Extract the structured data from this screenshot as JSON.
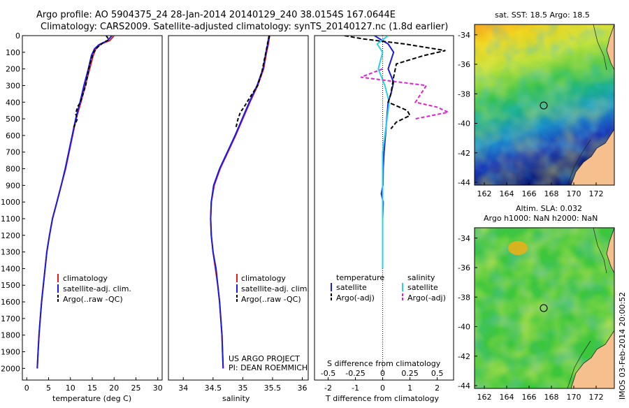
{
  "header": {
    "line1": "Argo profile: AO 5904375_24 28-Jan-2014 20140129_240 38.0154S 167.0644E",
    "line2": "Climatology: CARS2009. Satellite-adjusted climatology: synTS_20140127.nc (1.8d earlier)"
  },
  "colors": {
    "climatology": "#e02020",
    "satellite": "#1a1ae0",
    "argo": "#000000",
    "salinity_satellite": "#28d0e8",
    "salinity_argo": "#e020d0",
    "land": "#f5c08e"
  },
  "chart_data": [
    {
      "type": "line",
      "name": "temperature-profile",
      "xlabel": "temperature (deg C)",
      "xlim": [
        -1,
        31
      ],
      "xticks": [
        0,
        5,
        10,
        15,
        20,
        25,
        30
      ],
      "ylim": [
        0,
        2070
      ],
      "yticks": [
        0,
        100,
        200,
        300,
        400,
        500,
        600,
        700,
        800,
        900,
        1000,
        1100,
        1200,
        1300,
        1400,
        1500,
        1600,
        1700,
        1800,
        1900,
        2000
      ],
      "legend": [
        "climatology",
        "satellite-adj. clim.",
        "Argo(..raw -QC)"
      ],
      "series": [
        {
          "name": "climatology",
          "points": [
            [
              20,
              0
            ],
            [
              19,
              30
            ],
            [
              17,
              50
            ],
            [
              15.8,
              80
            ],
            [
              15.2,
              120
            ],
            [
              14.4,
              200
            ],
            [
              13.4,
              300
            ],
            [
              12.4,
              400
            ],
            [
              11.3,
              500
            ],
            [
              10.5,
              600
            ],
            [
              9.7,
              700
            ],
            [
              8.9,
              800
            ],
            [
              7.9,
              900
            ],
            [
              6.9,
              1000
            ],
            [
              5.9,
              1100
            ],
            [
              5.2,
              1200
            ],
            [
              4.6,
              1300
            ],
            [
              4.2,
              1400
            ],
            [
              3.8,
              1500
            ],
            [
              3.4,
              1600
            ],
            [
              3.1,
              1700
            ],
            [
              2.8,
              1800
            ],
            [
              2.6,
              1900
            ],
            [
              2.4,
              2000
            ]
          ]
        },
        {
          "name": "satellite-adj. clim.",
          "points": [
            [
              19.5,
              0
            ],
            [
              18.5,
              30
            ],
            [
              16.5,
              55
            ],
            [
              15.5,
              80
            ],
            [
              14.8,
              120
            ],
            [
              14.1,
              200
            ],
            [
              13.1,
              300
            ],
            [
              12.2,
              400
            ],
            [
              11.2,
              500
            ],
            [
              10.4,
              600
            ],
            [
              9.6,
              700
            ],
            [
              8.8,
              800
            ],
            [
              7.9,
              900
            ],
            [
              6.9,
              1000
            ],
            [
              5.9,
              1100
            ],
            [
              5.2,
              1200
            ],
            [
              4.6,
              1300
            ],
            [
              4.2,
              1400
            ],
            [
              3.8,
              1500
            ],
            [
              3.4,
              1600
            ],
            [
              3.1,
              1700
            ],
            [
              2.8,
              1800
            ],
            [
              2.6,
              1900
            ],
            [
              2.4,
              2000
            ]
          ]
        },
        {
          "name": "Argo(..raw -QC)",
          "points": [
            [
              18.2,
              0
            ],
            [
              18.8,
              25
            ],
            [
              17.6,
              40
            ],
            [
              16.2,
              70
            ],
            [
              15.3,
              100
            ],
            [
              14.7,
              150
            ],
            [
              14.2,
              200
            ],
            [
              13.5,
              300
            ],
            [
              12.3,
              400
            ],
            [
              11.6,
              430
            ],
            [
              11.2,
              470
            ],
            [
              11.6,
              500
            ],
            [
              10.6,
              560
            ]
          ]
        }
      ]
    },
    {
      "type": "line",
      "name": "salinity-profile",
      "xlabel": "salinity",
      "xlim": [
        33.75,
        36.1
      ],
      "xticks": [
        34,
        34.5,
        35,
        35.5,
        36
      ],
      "ylim": [
        0,
        2070
      ],
      "legend": [
        "climatology",
        "satellite-adj. clim.",
        "Argo(..raw -QC)"
      ],
      "annotation": [
        "US ARGO PROJECT",
        "PI: DEAN ROEMMICH"
      ],
      "series": [
        {
          "name": "climatology",
          "points": [
            [
              35.45,
              0
            ],
            [
              35.43,
              50
            ],
            [
              35.4,
              100
            ],
            [
              35.35,
              200
            ],
            [
              35.25,
              300
            ],
            [
              35.12,
              400
            ],
            [
              35.0,
              500
            ],
            [
              34.88,
              600
            ],
            [
              34.75,
              700
            ],
            [
              34.62,
              800
            ],
            [
              34.52,
              900
            ],
            [
              34.47,
              1000
            ],
            [
              34.46,
              1100
            ],
            [
              34.47,
              1200
            ],
            [
              34.5,
              1300
            ],
            [
              34.54,
              1400
            ],
            [
              34.58,
              1500
            ],
            [
              34.61,
              1600
            ],
            [
              34.63,
              1700
            ],
            [
              34.65,
              1800
            ],
            [
              34.66,
              1900
            ],
            [
              34.67,
              2000
            ]
          ]
        },
        {
          "name": "satellite-adj. clim.",
          "points": [
            [
              35.44,
              0
            ],
            [
              35.42,
              50
            ],
            [
              35.39,
              100
            ],
            [
              35.34,
              200
            ],
            [
              35.24,
              300
            ],
            [
              35.11,
              400
            ],
            [
              34.99,
              500
            ],
            [
              34.87,
              600
            ],
            [
              34.74,
              700
            ],
            [
              34.61,
              800
            ],
            [
              34.51,
              900
            ],
            [
              34.47,
              1000
            ],
            [
              34.46,
              1100
            ],
            [
              34.47,
              1200
            ],
            [
              34.5,
              1300
            ],
            [
              34.55,
              1400
            ],
            [
              34.58,
              1500
            ],
            [
              34.61,
              1600
            ],
            [
              34.63,
              1700
            ],
            [
              34.65,
              1800
            ],
            [
              34.66,
              1900
            ],
            [
              34.67,
              2000
            ]
          ]
        },
        {
          "name": "Argo(..raw -QC)",
          "points": [
            [
              35.45,
              0
            ],
            [
              35.42,
              40
            ],
            [
              35.4,
              80
            ],
            [
              35.36,
              150
            ],
            [
              35.32,
              220
            ],
            [
              35.25,
              300
            ],
            [
              35.14,
              360
            ],
            [
              35.02,
              430
            ],
            [
              34.96,
              460
            ],
            [
              34.92,
              500
            ],
            [
              34.88,
              560
            ]
          ]
        }
      ]
    },
    {
      "type": "line",
      "name": "difference-profile",
      "xlabel": "T difference from climatology",
      "xlabel_top": "S difference from climatology",
      "xlim": [
        -2.5,
        2.6
      ],
      "xticks": [
        -2,
        -1,
        0,
        1,
        2
      ],
      "xticks_top": [
        -0.5,
        -0.25,
        0,
        0.25,
        0.5
      ],
      "xtick_labels_top": [
        "-0.5",
        "-0.25",
        "0",
        "0.25",
        "0.5"
      ],
      "legend_titles": [
        "temperature",
        "salinity"
      ],
      "legend": [
        "satellite",
        "Argo(-adj)",
        "satellite",
        "Argo(-adj)"
      ],
      "series": [
        {
          "name": "temperature satellite",
          "points": [
            [
              -0.3,
              0
            ],
            [
              -0.1,
              20
            ],
            [
              0.2,
              50
            ],
            [
              0.4,
              100
            ],
            [
              0.3,
              150
            ],
            [
              0.2,
              200
            ],
            [
              0.4,
              280
            ],
            [
              0.3,
              350
            ],
            [
              0.2,
              400
            ],
            [
              0.15,
              500
            ],
            [
              0.1,
              600
            ],
            [
              0.05,
              700
            ],
            [
              0.02,
              800
            ],
            [
              0.01,
              900
            ],
            [
              -0.05,
              950
            ],
            [
              0.02,
              1000
            ],
            [
              0,
              1100
            ],
            [
              0,
              1400
            ]
          ]
        },
        {
          "name": "temperature Argo(-adj)",
          "points": [
            [
              -1.4,
              0
            ],
            [
              -0.7,
              20
            ],
            [
              0.8,
              50
            ],
            [
              2.3,
              90
            ],
            [
              1.5,
              120
            ],
            [
              0.9,
              150
            ],
            [
              0.5,
              170
            ],
            [
              0.4,
              250
            ],
            [
              0.3,
              350
            ],
            [
              0.2,
              400
            ],
            [
              0.9,
              450
            ],
            [
              1.0,
              480
            ],
            [
              0.5,
              520
            ],
            [
              0.3,
              560
            ]
          ]
        },
        {
          "name": "salinity satellite",
          "points": [
            [
              0.05,
              0
            ],
            [
              -0.05,
              50
            ],
            [
              0,
              100
            ],
            [
              -0.04,
              200
            ],
            [
              0.02,
              300
            ],
            [
              0.06,
              400
            ],
            [
              0.04,
              500
            ],
            [
              0.02,
              600
            ],
            [
              0,
              700
            ],
            [
              0,
              1400
            ]
          ]
        },
        {
          "name": "salinity Argo(-adj)",
          "points": [
            [
              0,
              200
            ],
            [
              -0.2,
              250
            ],
            [
              0.4,
              300
            ],
            [
              0.35,
              350
            ],
            [
              0.3,
              400
            ],
            [
              0.5,
              430
            ],
            [
              0.6,
              460
            ],
            [
              0.3,
              500
            ]
          ]
        }
      ]
    }
  ],
  "maps": {
    "top": {
      "title": "sat. SST: 18.5 Argo: 18.5",
      "yticks": [
        "-34",
        "-36",
        "-38",
        "-40",
        "-42",
        "-44"
      ],
      "xticks": [
        "162",
        "164",
        "166",
        "168",
        "170",
        "172"
      ]
    },
    "bottom": {
      "title1": "Altim. SLA: 0.032",
      "title2": "Argo h1000: NaN h2000: NaN",
      "yticks": [
        "-34",
        "-36",
        "-38",
        "-40",
        "-42",
        "-44"
      ],
      "xticks": [
        "162",
        "164",
        "166",
        "168",
        "170",
        "172"
      ]
    }
  },
  "footer": {
    "stamp": "IMOS 03-Feb-2014 20:00:52"
  }
}
